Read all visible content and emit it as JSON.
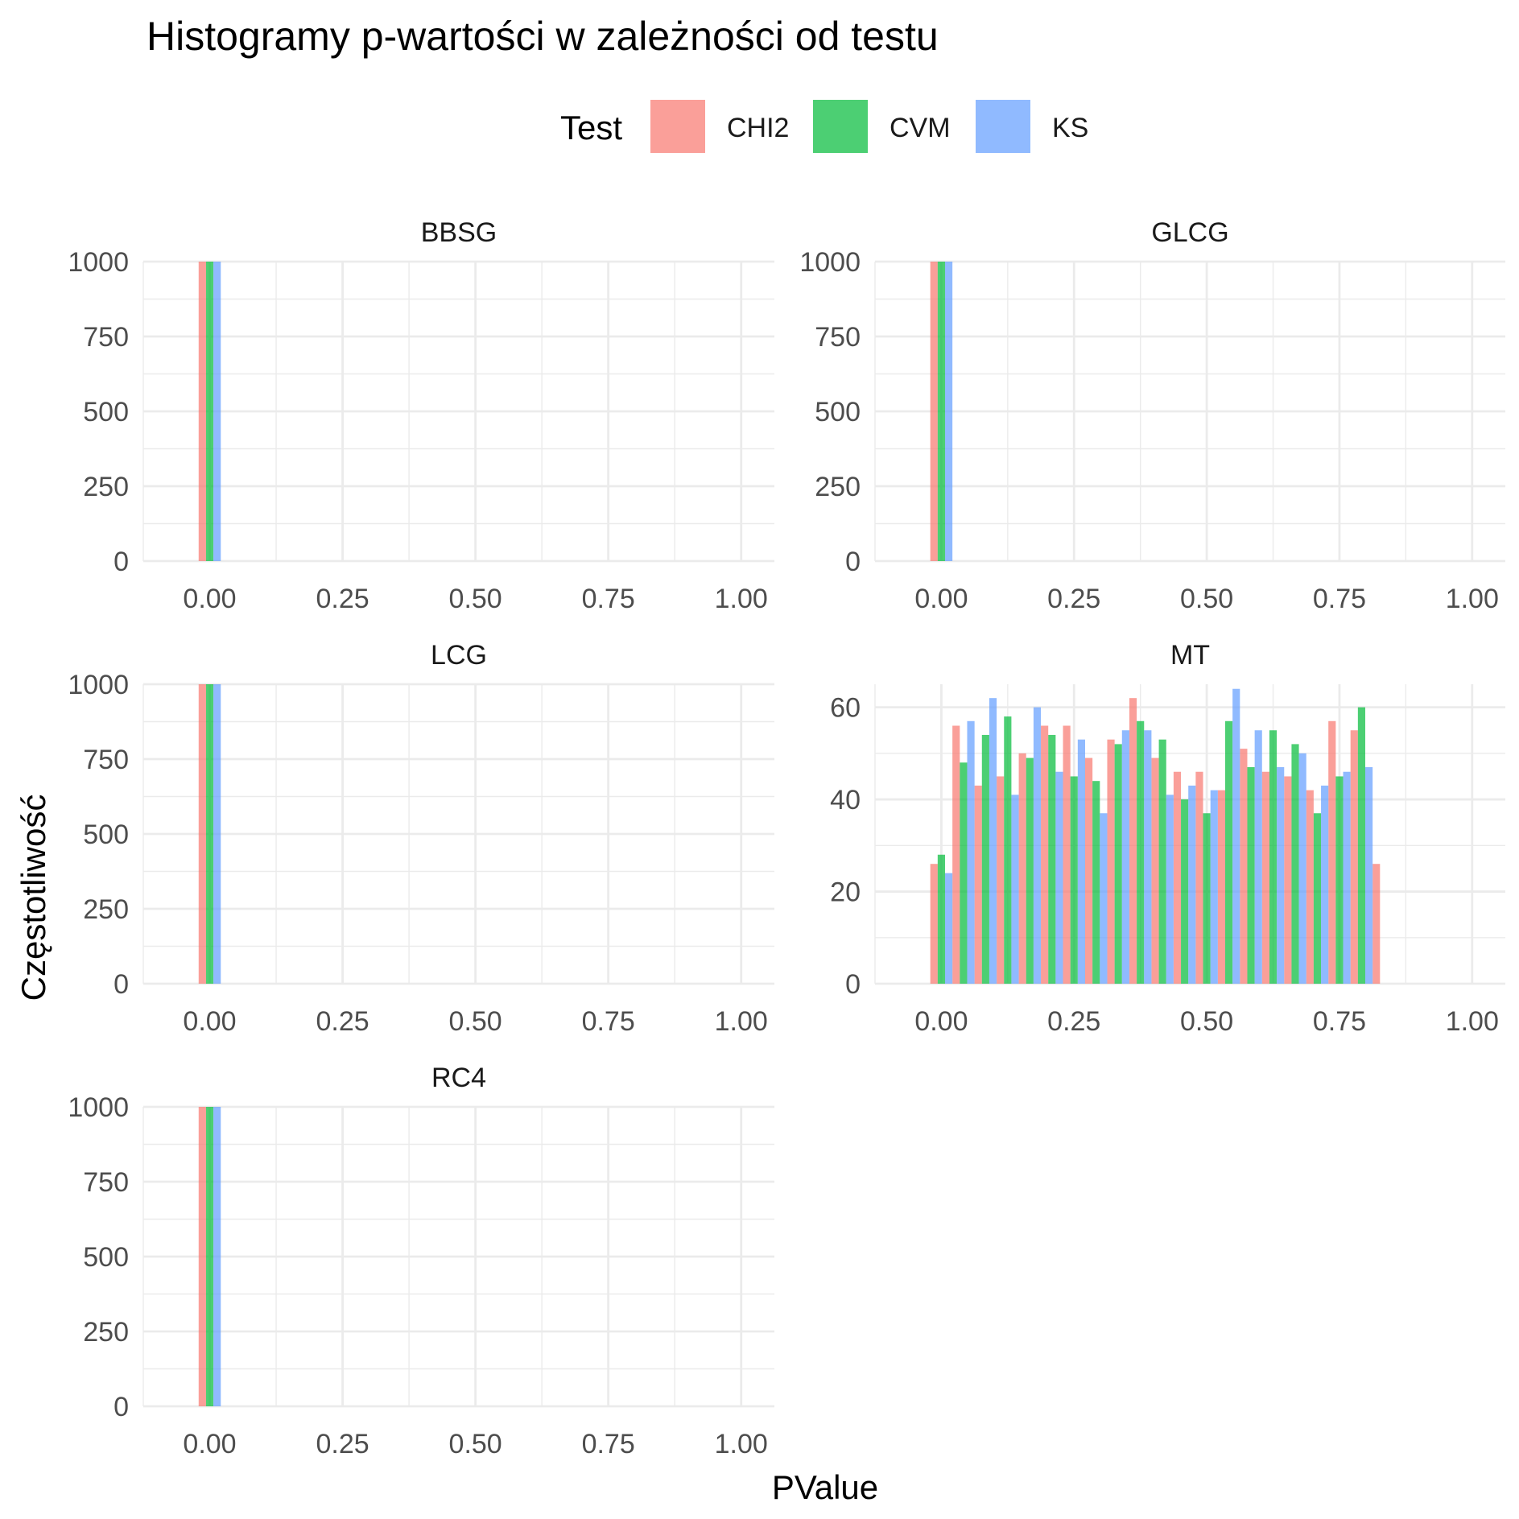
{
  "chart_data": {
    "type": "bar",
    "title": "Histogramy p-wartości w zależności od testu",
    "xlabel": "PValue",
    "ylabel": "Częstotliwość",
    "legend": {
      "title": "Test",
      "position": "top",
      "entries": [
        {
          "name": "CHI2",
          "color": "#F8766D"
        },
        {
          "name": "CVM",
          "color": "#00BA38"
        },
        {
          "name": "KS",
          "color": "#619CFF"
        }
      ]
    },
    "bar_opacity": 0.7,
    "grid": true,
    "xlim": [
      -0.125,
      1.0625
    ],
    "x_ticks": [
      "0.00",
      "0.25",
      "0.50",
      "0.75",
      "1.00"
    ],
    "bin_centers": [
      0,
      0.04167,
      0.08333,
      0.125,
      0.16667,
      0.20833,
      0.25,
      0.29167,
      0.33333,
      0.375,
      0.41667,
      0.45833,
      0.5,
      0.54167,
      0.58333,
      0.625,
      0.66667,
      0.70833,
      0.75,
      0.79167,
      0.83333,
      0.875,
      0.91667,
      0.95833,
      1.0
    ],
    "panels": [
      {
        "name": "BBSG",
        "ylim": [
          0,
          1000
        ],
        "y_ticks": [
          "0",
          "250",
          "500",
          "750",
          "1000"
        ],
        "series": [
          {
            "name": "CHI2",
            "values": [
              1000
            ]
          },
          {
            "name": "CVM",
            "values": [
              1000
            ]
          },
          {
            "name": "KS",
            "values": [
              1000
            ]
          }
        ]
      },
      {
        "name": "GLCG",
        "ylim": [
          0,
          1000
        ],
        "y_ticks": [
          "0",
          "250",
          "500",
          "750",
          "1000"
        ],
        "series": [
          {
            "name": "CHI2",
            "values": [
              1000
            ]
          },
          {
            "name": "CVM",
            "values": [
              1000
            ]
          },
          {
            "name": "KS",
            "values": [
              1000
            ]
          }
        ]
      },
      {
        "name": "LCG",
        "ylim": [
          0,
          1000
        ],
        "y_ticks": [
          "0",
          "250",
          "500",
          "750",
          "1000"
        ],
        "series": [
          {
            "name": "CHI2",
            "values": [
              1000
            ]
          },
          {
            "name": "CVM",
            "values": [
              1000
            ]
          },
          {
            "name": "KS",
            "values": [
              1000
            ]
          }
        ]
      },
      {
        "name": "MT",
        "ylim": [
          0,
          65
        ],
        "y_ticks": [
          "0",
          "20",
          "40",
          "60"
        ],
        "series": [
          {
            "name": "CHI2",
            "values": [
              26,
              56,
              43,
              45,
              50,
              56,
              56,
              49,
              53,
              62,
              49,
              46,
              46,
              42,
              51,
              46,
              45,
              42,
              57,
              55,
              26,
              0,
              0,
              0,
              0
            ]
          },
          {
            "name": "CVM",
            "values": [
              28,
              48,
              54,
              58,
              49,
              54,
              45,
              44,
              52,
              57,
              53,
              40,
              37,
              57,
              47,
              55,
              52,
              37,
              45,
              60,
              0,
              0,
              0,
              0,
              0
            ]
          },
          {
            "name": "KS",
            "values": [
              24,
              57,
              62,
              41,
              60,
              46,
              53,
              37,
              55,
              55,
              41,
              43,
              42,
              64,
              55,
              47,
              50,
              43,
              46,
              47,
              0,
              0,
              0,
              0,
              0
            ]
          }
        ]
      },
      {
        "name": "RC4",
        "ylim": [
          0,
          1000
        ],
        "y_ticks": [
          "0",
          "250",
          "500",
          "750",
          "1000"
        ],
        "series": [
          {
            "name": "CHI2",
            "values": [
              1000
            ]
          },
          {
            "name": "CVM",
            "values": [
              1000
            ]
          },
          {
            "name": "KS",
            "values": [
              1000
            ]
          }
        ]
      }
    ]
  }
}
